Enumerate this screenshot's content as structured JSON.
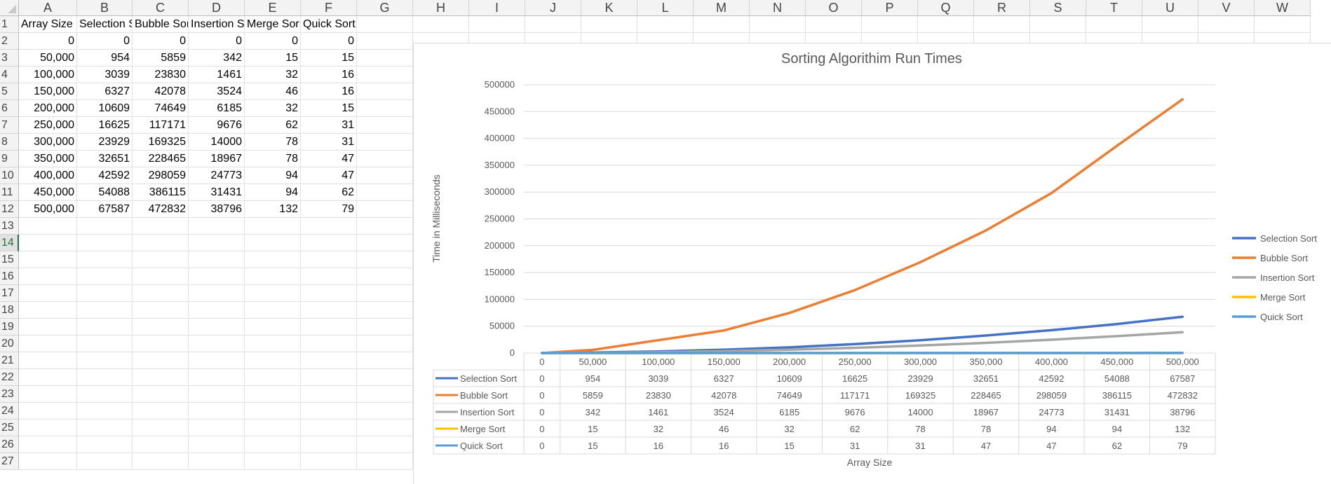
{
  "sheet": {
    "columns": [
      "A",
      "B",
      "C",
      "D",
      "E",
      "F",
      "G",
      "H",
      "I",
      "J",
      "K",
      "L",
      "M",
      "N",
      "O",
      "P",
      "Q",
      "R",
      "S",
      "T",
      "U",
      "V",
      "W"
    ],
    "row_numbers": [
      "1",
      "2",
      "3",
      "4",
      "5",
      "6",
      "7",
      "8",
      "9",
      "10",
      "11",
      "12",
      "13",
      "14",
      "15",
      "16",
      "17",
      "18",
      "19",
      "20",
      "21",
      "22",
      "23",
      "24",
      "25",
      "26",
      "27"
    ],
    "active_row": "14",
    "headers": [
      "Array Size",
      "Selection S",
      "Bubble Sor",
      "Insertion S",
      "Merge Sor",
      "Quick Sort"
    ],
    "rows": [
      [
        "0",
        "0",
        "0",
        "0",
        "0",
        "0"
      ],
      [
        "50,000",
        "954",
        "5859",
        "342",
        "15",
        "15"
      ],
      [
        "100,000",
        "3039",
        "23830",
        "1461",
        "32",
        "16"
      ],
      [
        "150,000",
        "6327",
        "42078",
        "3524",
        "46",
        "16"
      ],
      [
        "200,000",
        "10609",
        "74649",
        "6185",
        "32",
        "15"
      ],
      [
        "250,000",
        "16625",
        "117171",
        "9676",
        "62",
        "31"
      ],
      [
        "300,000",
        "23929",
        "169325",
        "14000",
        "78",
        "31"
      ],
      [
        "350,000",
        "32651",
        "228465",
        "18967",
        "78",
        "47"
      ],
      [
        "400,000",
        "42592",
        "298059",
        "24773",
        "94",
        "47"
      ],
      [
        "450,000",
        "54088",
        "386115",
        "31431",
        "94",
        "62"
      ],
      [
        "500,000",
        "67587",
        "472832",
        "38796",
        "132",
        "79"
      ]
    ]
  },
  "chart_data": {
    "type": "line",
    "title": "Sorting Algorithim Run Times",
    "xlabel": "Array Size",
    "ylabel": "Time in Milliseconds",
    "categories": [
      "0",
      "50,000",
      "100,000",
      "150,000",
      "200,000",
      "250,000",
      "300,000",
      "350,000",
      "400,000",
      "450,000",
      "500,000"
    ],
    "ylim": [
      0,
      500000
    ],
    "yticks": [
      "500000",
      "450000",
      "400000",
      "350000",
      "300000",
      "250000",
      "200000",
      "150000",
      "100000",
      "50000",
      "0"
    ],
    "grid": true,
    "legend_position": "right",
    "data_table": true,
    "series": [
      {
        "name": "Selection Sort",
        "color": "#4472c4",
        "values": [
          0,
          954,
          3039,
          6327,
          10609,
          16625,
          23929,
          32651,
          42592,
          54088,
          67587
        ]
      },
      {
        "name": "Bubble Sort",
        "color": "#ed7d31",
        "values": [
          0,
          5859,
          23830,
          42078,
          74649,
          117171,
          169325,
          228465,
          298059,
          386115,
          472832
        ]
      },
      {
        "name": "Insertion Sort",
        "color": "#a5a5a5",
        "values": [
          0,
          342,
          1461,
          3524,
          6185,
          9676,
          14000,
          18967,
          24773,
          31431,
          38796
        ]
      },
      {
        "name": "Merge Sort",
        "color": "#ffc000",
        "values": [
          0,
          15,
          32,
          46,
          32,
          62,
          78,
          78,
          94,
          94,
          132
        ]
      },
      {
        "name": "Quick Sort",
        "color": "#5b9bd5",
        "values": [
          0,
          15,
          16,
          16,
          15,
          31,
          31,
          47,
          47,
          62,
          79
        ]
      }
    ]
  }
}
